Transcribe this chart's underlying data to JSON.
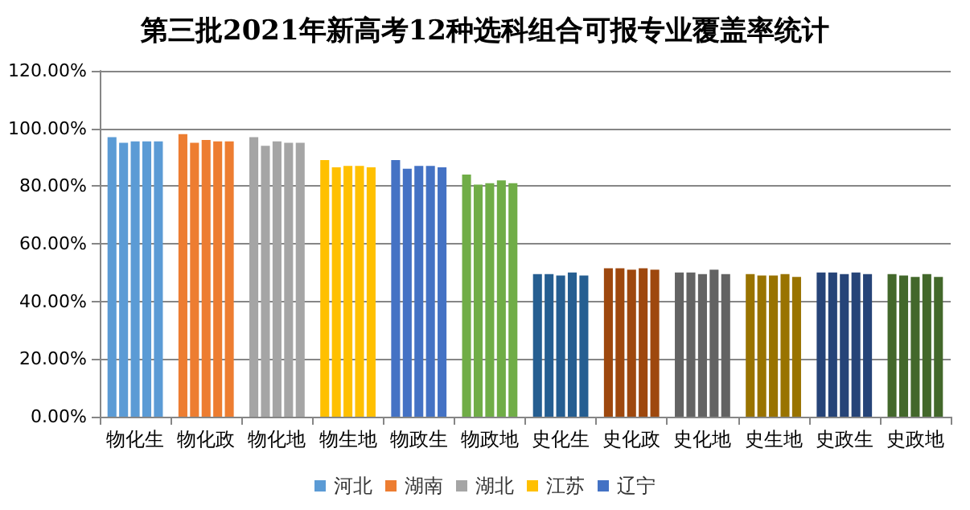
{
  "chart_data": {
    "type": "bar",
    "title": "第三批2021年新高考12种选科组合可报专业覆盖率统计",
    "categories": [
      "物化生",
      "物化政",
      "物化地",
      "物生地",
      "物政生",
      "物政地",
      "史化生",
      "史化政",
      "史化地",
      "史生地",
      "史政生",
      "史政地"
    ],
    "series": [
      {
        "name": "河北",
        "colors": [
          "#5b9bd5",
          "#ed7d31",
          "#a5a5a5",
          "#ffc000",
          "#4472c4",
          "#70ad47",
          "#255e91",
          "#9e480e",
          "#636363",
          "#997300",
          "#264478",
          "#43682b"
        ],
        "values": [
          97,
          98,
          97,
          89,
          89,
          84,
          49.5,
          51.5,
          50,
          49.5,
          50,
          49.5
        ]
      },
      {
        "name": "湖南",
        "colors": [
          "#5b9bd5",
          "#ed7d31",
          "#a5a5a5",
          "#ffc000",
          "#4472c4",
          "#70ad47",
          "#255e91",
          "#9e480e",
          "#636363",
          "#997300",
          "#264478",
          "#43682b"
        ],
        "values": [
          95,
          95,
          94,
          86.5,
          86,
          80.5,
          49.5,
          51.5,
          50,
          49,
          50,
          49
        ]
      },
      {
        "name": "湖北",
        "colors": [
          "#5b9bd5",
          "#ed7d31",
          "#a5a5a5",
          "#ffc000",
          "#4472c4",
          "#70ad47",
          "#255e91",
          "#9e480e",
          "#636363",
          "#997300",
          "#264478",
          "#43682b"
        ],
        "values": [
          95.5,
          96,
          95.5,
          87,
          87,
          81,
          49,
          51,
          49.5,
          49,
          49.5,
          48.5
        ]
      },
      {
        "name": "江苏",
        "colors": [
          "#5b9bd5",
          "#ed7d31",
          "#a5a5a5",
          "#ffc000",
          "#4472c4",
          "#70ad47",
          "#255e91",
          "#9e480e",
          "#636363",
          "#997300",
          "#264478",
          "#43682b"
        ],
        "values": [
          95.5,
          95.5,
          95,
          87,
          87,
          82,
          50,
          51.5,
          51,
          49.5,
          50,
          49.5
        ]
      },
      {
        "name": "辽宁",
        "colors": [
          "#5b9bd5",
          "#ed7d31",
          "#a5a5a5",
          "#ffc000",
          "#4472c4",
          "#70ad47",
          "#255e91",
          "#9e480e",
          "#636363",
          "#997300",
          "#264478",
          "#43682b"
        ],
        "values": [
          95.5,
          95.5,
          95,
          86.5,
          86.5,
          81,
          49,
          51,
          49.5,
          48.5,
          49.5,
          48.5
        ]
      }
    ],
    "ylim": [
      0,
      120
    ],
    "yticks": [
      {
        "value": 0,
        "label": "0.00%"
      },
      {
        "value": 20,
        "label": "20.00%"
      },
      {
        "value": 40,
        "label": "40.00%"
      },
      {
        "value": 60,
        "label": "60.00%"
      },
      {
        "value": 80,
        "label": "80.00%"
      },
      {
        "value": 100,
        "label": "100.00%"
      },
      {
        "value": 120,
        "label": "120.00%"
      }
    ],
    "grid": "y",
    "legend": "bottom"
  }
}
